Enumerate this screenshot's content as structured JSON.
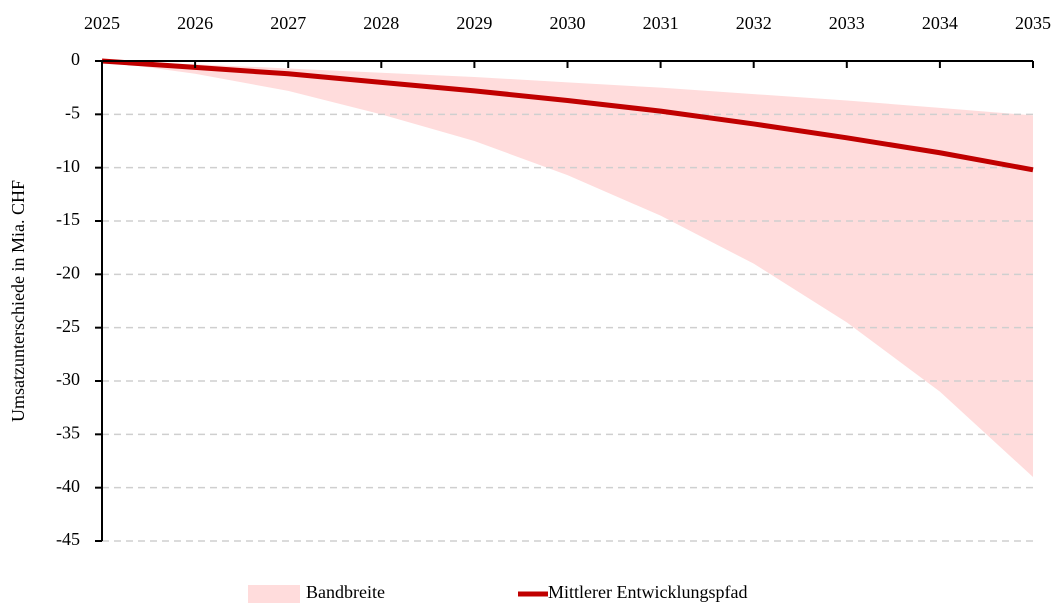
{
  "chart_data": {
    "type": "line",
    "y_label": "Umsatzunterschiede in Mia. CHF",
    "x": [
      2025,
      2026,
      2027,
      2028,
      2029,
      2030,
      2031,
      2032,
      2033,
      2034,
      2035
    ],
    "series": [
      {
        "name": "Bandbreite",
        "type": "band",
        "color": "#ffdcdc",
        "upper": [
          0,
          -0.3,
          -0.7,
          -1.1,
          -1.5,
          -2.0,
          -2.5,
          -3.1,
          -3.7,
          -4.4,
          -5.1
        ],
        "lower": [
          0,
          -1.2,
          -2.8,
          -5.0,
          -7.5,
          -10.7,
          -14.5,
          -19.0,
          -24.5,
          -31.0,
          -39.0
        ]
      },
      {
        "name": "Mittlerer Entwicklungspfad",
        "type": "line",
        "color": "#c00000",
        "values": [
          0,
          -0.6,
          -1.2,
          -2.0,
          -2.8,
          -3.7,
          -4.7,
          -5.9,
          -7.2,
          -8.6,
          -10.2
        ]
      }
    ],
    "xlim": [
      2025,
      2035
    ],
    "xticks": [
      2025,
      2026,
      2027,
      2028,
      2029,
      2030,
      2031,
      2032,
      2033,
      2034,
      2035
    ],
    "ylim": [
      -45,
      0
    ],
    "yticks": [
      0,
      -5,
      -10,
      -15,
      -20,
      -25,
      -30,
      -35,
      -40,
      -45
    ],
    "grid": true,
    "legend": "bottom"
  }
}
